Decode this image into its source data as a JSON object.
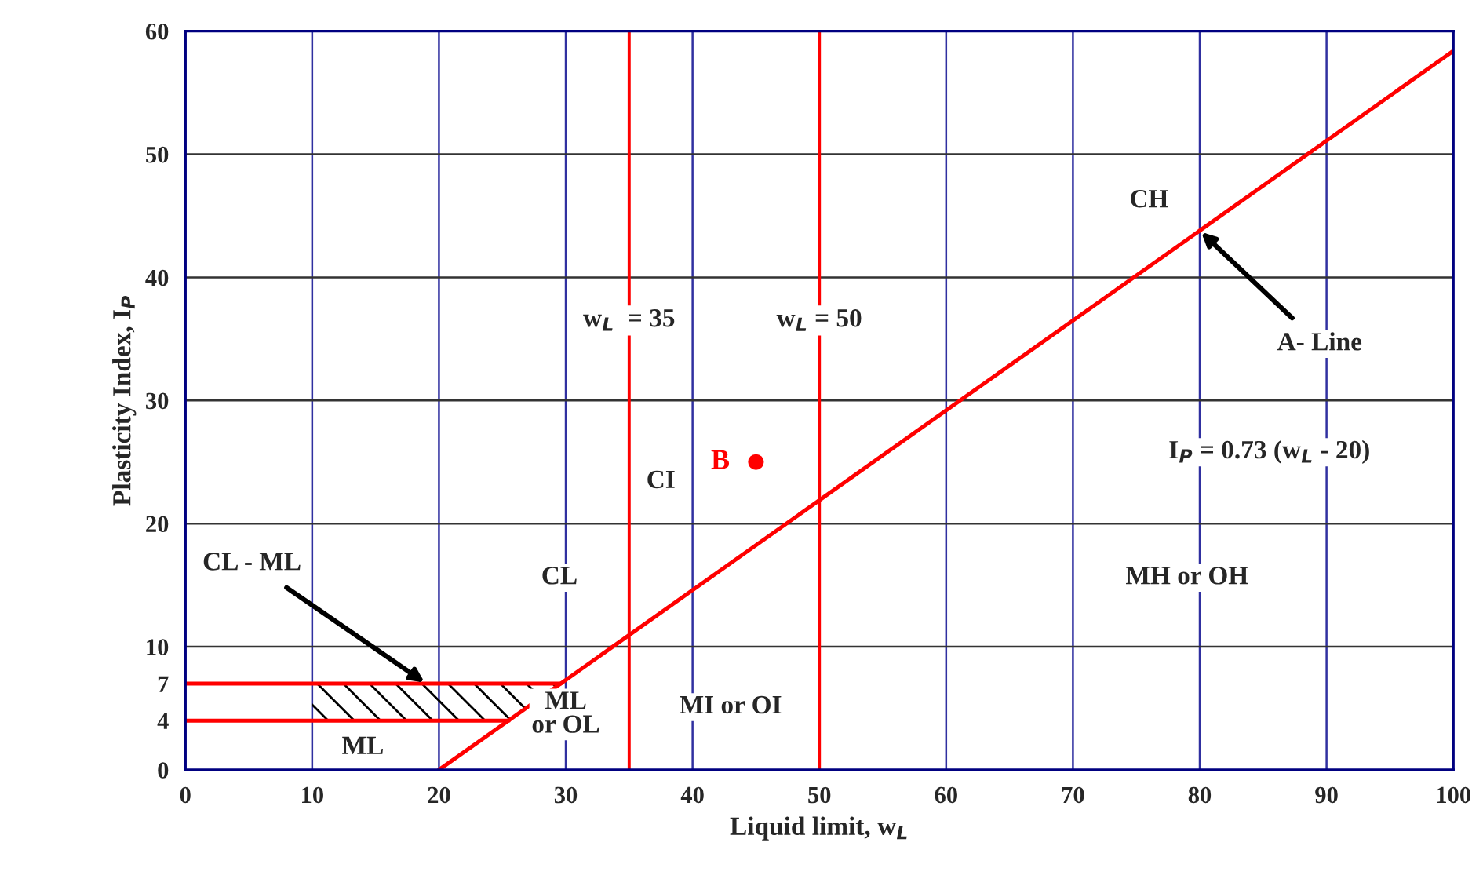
{
  "chart_data": {
    "type": "line",
    "xlabel": "Liquid limit, w$_{L}$",
    "ylabel": "Plasticity Index, I$_{P}$",
    "xlim": [
      0,
      100
    ],
    "ylim": [
      0,
      60
    ],
    "xticks": [
      0,
      10,
      20,
      30,
      40,
      50,
      60,
      70,
      80,
      90,
      100
    ],
    "yticks": [
      0,
      4,
      7,
      10,
      20,
      30,
      40,
      50,
      60
    ],
    "grid": "x",
    "series": [
      {
        "color": "#ff0000",
        "x": [
          20,
          100
        ],
        "values": [
          0,
          58.4
        ]
      },
      {
        "color": "#ff0000",
        "x": [
          0,
          29.6
        ],
        "values": [
          7,
          7
        ]
      },
      {
        "color": "#ff0000",
        "x": [
          0,
          25.5
        ],
        "values": [
          4,
          4
        ]
      },
      {
        "type": "scatter",
        "name": "B",
        "color": "#ff0000",
        "marker": "circle",
        "x": [
          45
        ],
        "values": [
          25
        ]
      }
    ],
    "ref_lines": [
      {
        "axis": "x",
        "value": 35,
        "label": "w$_{L}$  = 35",
        "color": "#ff0000"
      },
      {
        "axis": "x",
        "value": 50,
        "label": "w$_{L}$ = 50",
        "color": "#ff0000"
      },
      {
        "axis": "y",
        "value": 10,
        "label": null,
        "color": "#333333"
      },
      {
        "axis": "y",
        "value": 20,
        "label": null,
        "color": "#333333"
      },
      {
        "axis": "y",
        "value": 30,
        "label": null,
        "color": "#333333"
      },
      {
        "axis": "y",
        "value": 40,
        "label": null,
        "color": "#333333"
      },
      {
        "axis": "y",
        "value": 50,
        "label": null,
        "color": "#333333"
      }
    ],
    "annotations": [
      "CH",
      "CI",
      "CL",
      "MH or OH",
      "MI or OI",
      "ML",
      "ML\nor OL",
      {
        "text": "CL - ML",
        "x": 19,
        "y": 7
      },
      {
        "text": "A- Line",
        "x": 80,
        "y": 43.8
      },
      "I$_{P}$ = 0.73 (w$_{L}$ - 20)"
    ]
  }
}
